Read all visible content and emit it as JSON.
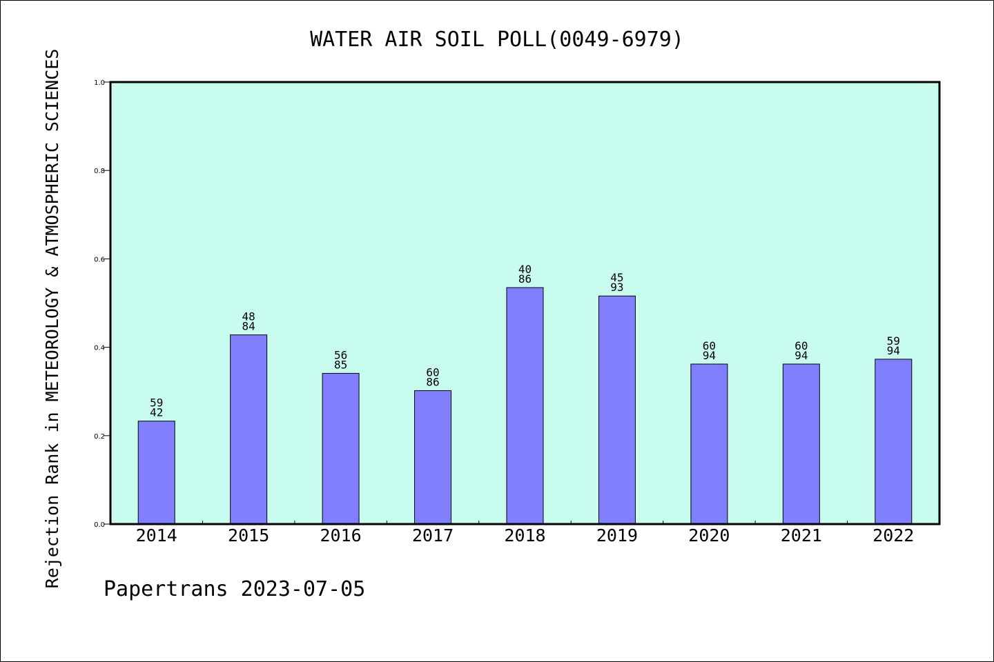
{
  "chart_data": {
    "type": "bar",
    "title": "WATER AIR SOIL POLL(0049-6979)",
    "ylabel": "Rejection Rank in METEOROLOGY & ATMOSPHERIC SCIENCES",
    "xlabel": "",
    "footer": "Papertrans 2023-07-05",
    "categories": [
      "2014",
      "2015",
      "2016",
      "2017",
      "2018",
      "2019",
      "2020",
      "2021",
      "2022"
    ],
    "values": [
      0.233,
      0.428,
      0.341,
      0.302,
      0.535,
      0.516,
      0.362,
      0.362,
      0.373
    ],
    "bar_labels": [
      [
        "59",
        "42"
      ],
      [
        "48",
        "84"
      ],
      [
        "56",
        "85"
      ],
      [
        "60",
        "86"
      ],
      [
        "40",
        "86"
      ],
      [
        "45",
        "93"
      ],
      [
        "60",
        "94"
      ],
      [
        "60",
        "94"
      ],
      [
        "59",
        "94"
      ]
    ],
    "ylim": [
      0,
      1.0
    ],
    "yticks": [
      "0.0",
      "0.2",
      "0.4",
      "0.6",
      "0.8",
      "1.0"
    ],
    "grid": false,
    "colors": {
      "plot_background": "#c8fcef",
      "bar_fill": "#8080ff",
      "bar_stroke": "#000000"
    }
  }
}
